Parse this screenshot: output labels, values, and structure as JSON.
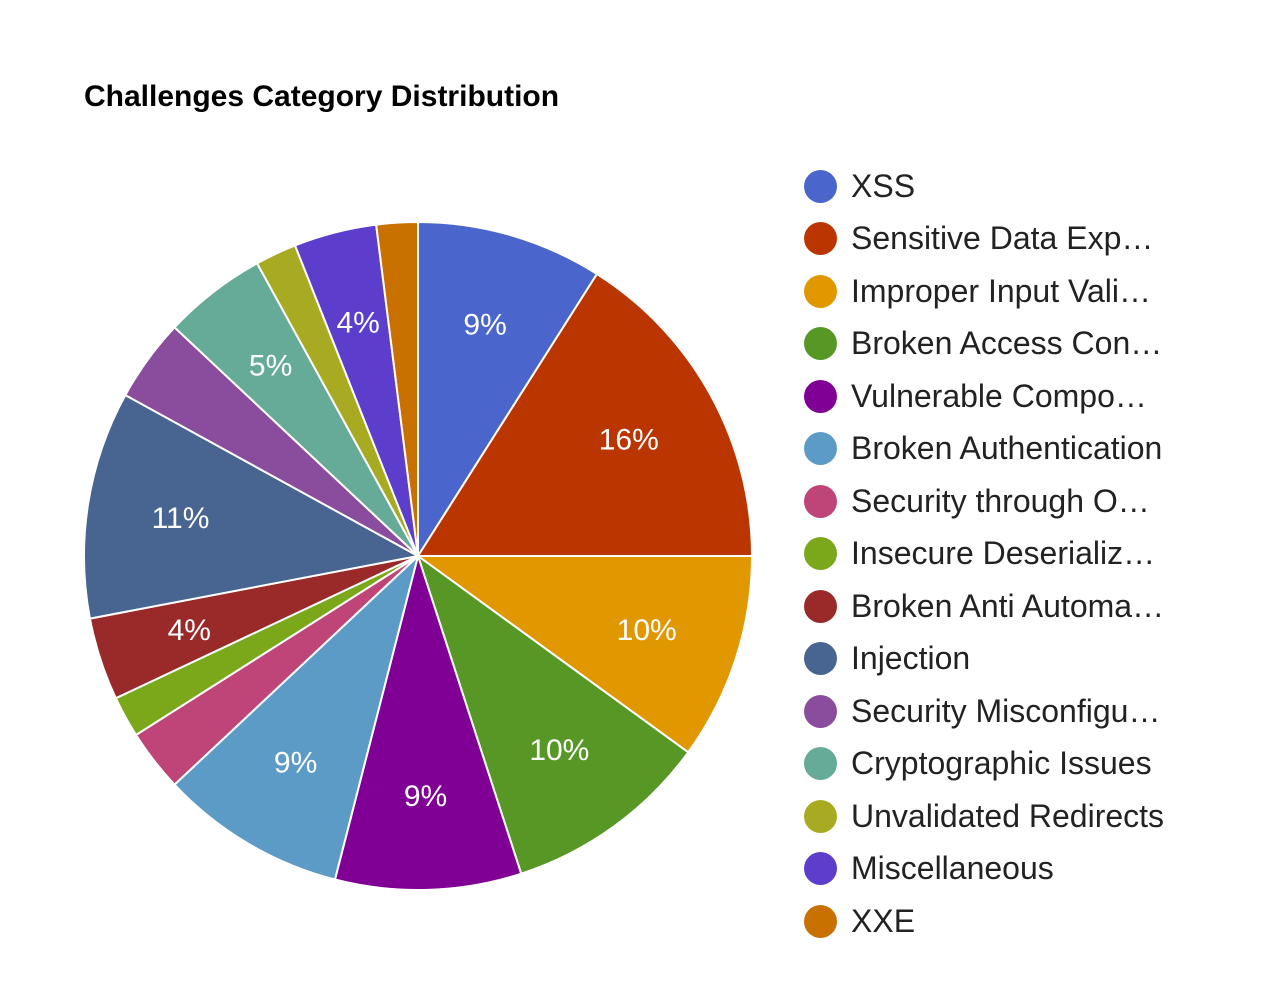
{
  "chart_data": {
    "type": "pie",
    "title": "Challenges Category Distribution",
    "legend_position": "right",
    "slices": [
      {
        "label": "XSS",
        "percent": 9,
        "value": 9,
        "color": "#4a66cc"
      },
      {
        "label": "Sensitive Data Exp…",
        "percent": 16,
        "value": 16,
        "color": "#bb3500"
      },
      {
        "label": "Improper Input Vali…",
        "percent": 10,
        "value": 10,
        "color": "#e19800"
      },
      {
        "label": "Broken Access Con…",
        "percent": 10,
        "value": 10,
        "color": "#569725"
      },
      {
        "label": "Vulnerable Compo…",
        "percent": 9,
        "value": 9,
        "color": "#800095"
      },
      {
        "label": "Broken Authentication",
        "percent": 9,
        "value": 9,
        "color": "#5b9bc6"
      },
      {
        "label": "Security through O…",
        "percent": "",
        "value": 3,
        "color": "#bf4477"
      },
      {
        "label": "Insecure Deserializ…",
        "percent": "",
        "value": 2,
        "color": "#7ba71b"
      },
      {
        "label": "Broken Anti Automa…",
        "percent": 4,
        "value": 4,
        "color": "#9a2a2a"
      },
      {
        "label": "Injection",
        "percent": 11,
        "value": 11,
        "color": "#486591"
      },
      {
        "label": "Security Misconfigu…",
        "percent": "",
        "value": 4,
        "color": "#8a4c9c"
      },
      {
        "label": "Cryptographic Issues",
        "percent": 5,
        "value": 5,
        "color": "#66aa98"
      },
      {
        "label": "Unvalidated Redirects",
        "percent": "",
        "value": 2,
        "color": "#a8aa22"
      },
      {
        "label": "Miscellaneous",
        "percent": 4,
        "value": 4,
        "color": "#5c3dcc"
      },
      {
        "label": "XXE",
        "percent": "",
        "value": 2,
        "color": "#c87100"
      }
    ]
  }
}
